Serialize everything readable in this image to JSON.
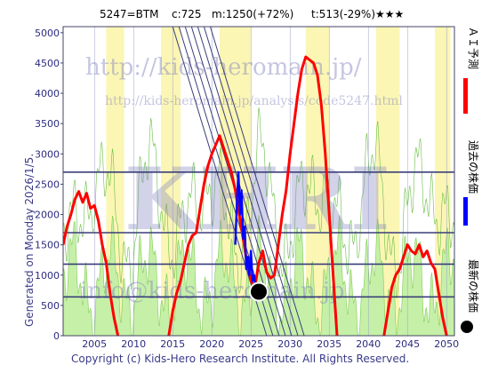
{
  "header": {
    "code": "5247=BTM",
    "current": "c:725",
    "max": "m:1250(+72%)",
    "min": "t:513(-29%)",
    "rating": "★★★"
  },
  "side_text": "Generated on Monday 2026/1/5.",
  "copyright": "Copyright (c) Kids-Hero Research Institute. All Rights Reserved.",
  "watermark": {
    "url": "http://kids-heromain.jp/",
    "url2": "http://kids-heromain.jp/analysis/code5247.html",
    "logo": "KHRI",
    "email": "info@kids-heromain.jp"
  },
  "legend": [
    {
      "label": "ＡＩ予測",
      "color": "#ff0000"
    },
    {
      "label": "過去の株価",
      "color": "#0000ff"
    },
    {
      "label": "最新の株価",
      "color": "#000000"
    }
  ],
  "chart_data": {
    "type": "line",
    "xlim": [
      2001,
      2051
    ],
    "ylim": [
      0,
      5100
    ],
    "x_ticks": [
      2005,
      2010,
      2015,
      2020,
      2025,
      2030,
      2035,
      2040,
      2045,
      2050
    ],
    "y_ticks": [
      0,
      500,
      1000,
      1500,
      2000,
      2500,
      3000,
      3500,
      4000,
      4500,
      5000
    ],
    "h_lines": [
      640,
      1180,
      1700,
      2700
    ],
    "latest": {
      "x": 2026.0,
      "y": 725
    },
    "series": [
      {
        "name": "ＡＩ予測",
        "color": "#ff0000",
        "segments": [
          [
            [
              2001.0,
              1500
            ],
            [
              2001.5,
              1800
            ],
            [
              2002.0,
              2000
            ],
            [
              2002.5,
              2250
            ],
            [
              2003.0,
              2380
            ],
            [
              2003.5,
              2200
            ],
            [
              2004.0,
              2350
            ],
            [
              2004.5,
              2100
            ],
            [
              2005.0,
              2150
            ],
            [
              2005.5,
              1900
            ],
            [
              2006.0,
              1500
            ],
            [
              2006.5,
              1200
            ],
            [
              2007.0,
              700
            ],
            [
              2007.5,
              300
            ],
            [
              2008.0,
              0
            ]
          ],
          [
            [
              2014.5,
              0
            ],
            [
              2015.0,
              400
            ],
            [
              2015.5,
              700
            ],
            [
              2016.0,
              900
            ],
            [
              2016.5,
              1200
            ],
            [
              2017.0,
              1500
            ],
            [
              2017.5,
              1650
            ],
            [
              2018.0,
              1700
            ],
            [
              2018.5,
              2100
            ],
            [
              2019.0,
              2500
            ],
            [
              2019.5,
              2800
            ],
            [
              2020.0,
              3000
            ],
            [
              2020.5,
              3150
            ],
            [
              2021.0,
              3300
            ],
            [
              2021.5,
              3100
            ],
            [
              2022.0,
              2900
            ],
            [
              2022.5,
              2700
            ],
            [
              2023.0,
              2400
            ],
            [
              2023.5,
              2000
            ],
            [
              2024.0,
              1600
            ],
            [
              2024.5,
              1200
            ],
            [
              2025.0,
              900
            ],
            [
              2025.5,
              800
            ],
            [
              2026.0,
              1200
            ],
            [
              2026.5,
              1400
            ],
            [
              2027.0,
              1050
            ],
            [
              2027.5,
              950
            ],
            [
              2028.0,
              1000
            ],
            [
              2028.5,
              1500
            ],
            [
              2029.0,
              2000
            ],
            [
              2029.5,
              2400
            ],
            [
              2030.0,
              3000
            ],
            [
              2030.5,
              3500
            ],
            [
              2031.0,
              4000
            ],
            [
              2031.5,
              4400
            ],
            [
              2032.0,
              4600
            ],
            [
              2032.5,
              4550
            ],
            [
              2033.0,
              4500
            ],
            [
              2033.5,
              4300
            ],
            [
              2034.0,
              3800
            ],
            [
              2034.5,
              3000
            ],
            [
              2035.0,
              2000
            ],
            [
              2035.5,
              1000
            ],
            [
              2036.0,
              0
            ]
          ],
          [
            [
              2042.0,
              0
            ],
            [
              2042.5,
              400
            ],
            [
              2043.0,
              800
            ],
            [
              2043.5,
              1000
            ],
            [
              2044.0,
              1100
            ],
            [
              2044.5,
              1300
            ],
            [
              2045.0,
              1500
            ],
            [
              2045.5,
              1400
            ],
            [
              2046.0,
              1350
            ],
            [
              2046.5,
              1500
            ],
            [
              2047.0,
              1300
            ],
            [
              2047.5,
              1400
            ],
            [
              2048.0,
              1200
            ],
            [
              2048.5,
              1100
            ],
            [
              2049.0,
              700
            ],
            [
              2049.5,
              300
            ],
            [
              2050.0,
              0
            ]
          ]
        ]
      },
      {
        "name": "過去の株価",
        "color": "#0000ff",
        "segments": [
          [
            [
              2023.0,
              1500
            ],
            [
              2023.2,
              2200
            ],
            [
              2023.4,
              2700
            ],
            [
              2023.6,
              2000
            ],
            [
              2023.8,
              2400
            ],
            [
              2024.0,
              1600
            ],
            [
              2024.2,
              1800
            ],
            [
              2024.4,
              1100
            ],
            [
              2024.6,
              1300
            ],
            [
              2024.8,
              1000
            ],
            [
              2025.0,
              1400
            ],
            [
              2025.2,
              900
            ],
            [
              2025.4,
              1000
            ],
            [
              2025.6,
              800
            ],
            [
              2025.8,
              725
            ],
            [
              2026.0,
              725
            ]
          ]
        ]
      }
    ],
    "bands": {
      "yellow": [
        [
          2006.5,
          2008.8
        ],
        [
          2013.5,
          2016.0
        ],
        [
          2021.0,
          2025.0
        ],
        [
          2032.0,
          2035.0
        ],
        [
          2041.0,
          2044.0
        ],
        [
          2048.5,
          2050.5
        ]
      ]
    }
  }
}
